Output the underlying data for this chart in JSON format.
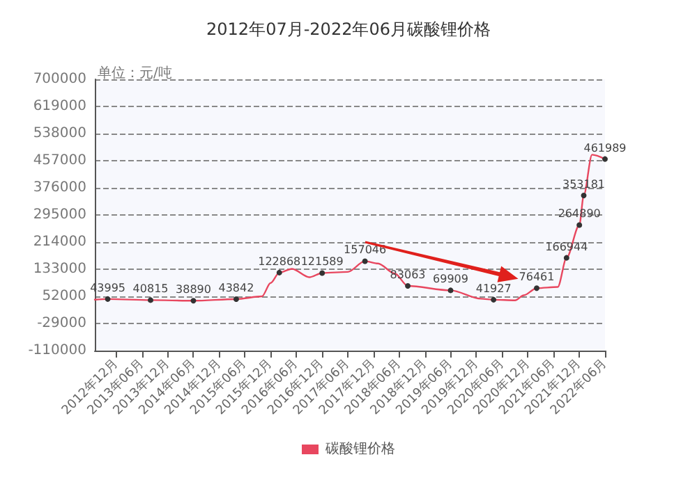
{
  "chart_data": {
    "type": "line",
    "title": "2012年07月-2022年06月碳酸锂价格",
    "ylabel": "单位：元/吨",
    "x": [
      "2012-07",
      "2012-10",
      "2013-08",
      "2014-06",
      "2015-04",
      "2015-10",
      "2015-12",
      "2016-02",
      "2016-05",
      "2016-09",
      "2016-12",
      "2017-06",
      "2017-10",
      "2018-01",
      "2018-05",
      "2018-08",
      "2019-06",
      "2020-01",
      "2020-04",
      "2020-09",
      "2020-11",
      "2021-02",
      "2021-07",
      "2021-09",
      "2021-12",
      "2022-01",
      "2022-03",
      "2022-06"
    ],
    "series": [
      {
        "name": "碳酸锂价格",
        "color": "#e8475f",
        "values": [
          42000,
          43995,
          40815,
          38890,
          43842,
          52000,
          92000,
          122868,
          134000,
          109000,
          121589,
          125000,
          157046,
          150000,
          120000,
          83063,
          69909,
          45000,
          41927,
          40000,
          55000,
          76461,
          80000,
          166944,
          264890,
          353181,
          475000,
          461989
        ],
        "value_labels": [
          null,
          "43995",
          "40815",
          "38890",
          "43842",
          null,
          null,
          "122868",
          null,
          null,
          "121589",
          null,
          "157046",
          null,
          null,
          "83063",
          "69909",
          null,
          "41927",
          null,
          null,
          "76461",
          null,
          "166944",
          "264890",
          "353181",
          null,
          "461989"
        ]
      }
    ],
    "xlim": [
      "2012-07",
      "2022-06"
    ],
    "xticks": [
      {
        "value": "2012-12",
        "label": "2012年12月"
      },
      {
        "value": "2013-06",
        "label": "2013年06月"
      },
      {
        "value": "2013-12",
        "label": "2013年12月"
      },
      {
        "value": "2014-06",
        "label": "2014年06月"
      },
      {
        "value": "2014-12",
        "label": "2014年12月"
      },
      {
        "value": "2015-06",
        "label": "2015年06月"
      },
      {
        "value": "2015-12",
        "label": "2015年12月"
      },
      {
        "value": "2016-06",
        "label": "2016年06月"
      },
      {
        "value": "2016-12",
        "label": "2016年12月"
      },
      {
        "value": "2017-06",
        "label": "2017年06月"
      },
      {
        "value": "2017-12",
        "label": "2017年12月"
      },
      {
        "value": "2018-06",
        "label": "2018年06月"
      },
      {
        "value": "2018-12",
        "label": "2018年12月"
      },
      {
        "value": "2019-06",
        "label": "2019年06月"
      },
      {
        "value": "2019-12",
        "label": "2019年12月"
      },
      {
        "value": "2020-06",
        "label": "2020年06月"
      },
      {
        "value": "2020-12",
        "label": "2020年12月"
      },
      {
        "value": "2021-06",
        "label": "2021年06月"
      },
      {
        "value": "2021-12",
        "label": "2021年12月"
      },
      {
        "value": "2022-06",
        "label": "2022年06月"
      }
    ],
    "ylim": [
      -110000,
      700000
    ],
    "yticks": [
      -110000,
      -29000,
      52000,
      133000,
      214000,
      295000,
      376000,
      457000,
      538000,
      619000,
      700000
    ],
    "grid": "y",
    "legend": "bottom",
    "marker": "circle",
    "line_style": "solid"
  }
}
